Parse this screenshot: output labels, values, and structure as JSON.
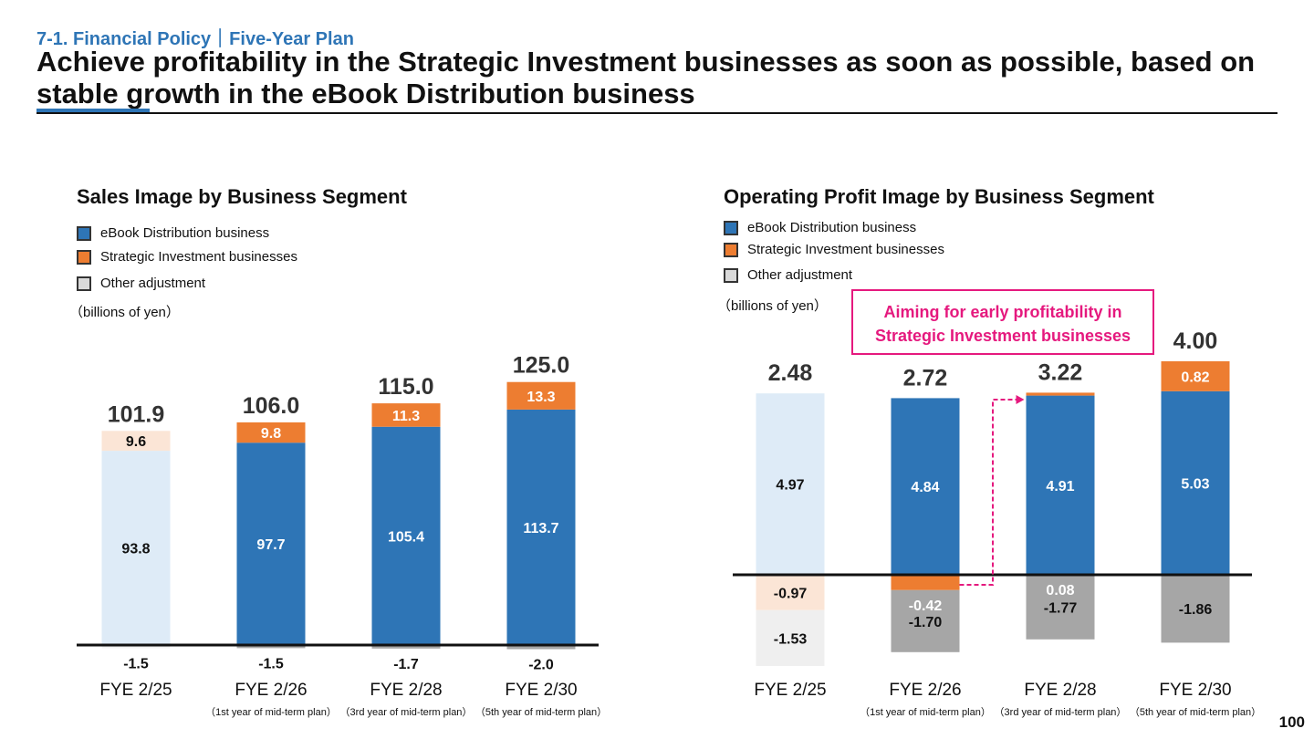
{
  "header": {
    "section": "7-1. Financial Policy｜Five-Year Plan",
    "title": "Achieve profitability in the Strategic Investment businesses as soon as possible, based on stable growth in the eBook Distribution business"
  },
  "colors": {
    "ebook": "#2e75b6",
    "strategic": "#ed7d31",
    "adjustment": "#a6a6a6",
    "actual_ebook": "#deebf7",
    "actual_strategic": "#fbe5d6",
    "actual_adjustment": "#efefef",
    "callout": "#e5197e"
  },
  "page_number": "100",
  "callout": {
    "line1": "Aiming for early profitability in",
    "line2": "Strategic Investment businesses"
  },
  "chart_data": [
    {
      "type": "bar",
      "stacked": true,
      "title": "Sales Image by Business Segment",
      "unit_label": "（billions of yen）",
      "legend": [
        "eBook Distribution business",
        "Strategic Investment businesses",
        "Other adjustment"
      ],
      "categories": [
        "FYE 2/25",
        "FYE 2/26",
        "FYE 2/28",
        "FYE 2/30"
      ],
      "subtitles": [
        "",
        "（1st year of mid-term plan）",
        "（3rd year of mid-term plan）",
        "（5th year of mid-term plan）"
      ],
      "series": [
        {
          "name": "eBook Distribution business",
          "values": [
            93.8,
            97.7,
            105.4,
            113.7
          ],
          "labels": [
            "93.8",
            "97.7",
            "105.4",
            "113.7"
          ]
        },
        {
          "name": "Strategic Investment businesses",
          "values": [
            9.6,
            9.8,
            11.3,
            13.3
          ],
          "labels": [
            "9.6",
            "9.8",
            "11.3",
            "13.3"
          ]
        },
        {
          "name": "Other adjustment",
          "values": [
            -1.5,
            -1.5,
            -1.7,
            -2.0
          ],
          "labels": [
            "-1.5",
            "-1.5",
            "-1.7",
            "-2.0"
          ]
        }
      ],
      "totals": [
        101.9,
        106.0,
        115.0,
        125.0
      ],
      "total_labels": [
        "101.9",
        "106.0",
        "115.0",
        "125.0"
      ],
      "actual_first_bar": true
    },
    {
      "type": "bar",
      "stacked": true,
      "title": "Operating Profit Image by Business Segment",
      "unit_label": "（billions of yen）",
      "legend": [
        "eBook Distribution business",
        "Strategic Investment businesses",
        "Other adjustment"
      ],
      "categories": [
        "FYE 2/25",
        "FYE 2/26",
        "FYE 2/28",
        "FYE 2/30"
      ],
      "subtitles": [
        "",
        "（1st year of mid-term plan）",
        "（3rd year of mid-term plan）",
        "（5th year of mid-term plan）"
      ],
      "series": [
        {
          "name": "eBook Distribution business",
          "values": [
            4.97,
            4.84,
            4.91,
            5.03
          ],
          "labels": [
            "4.97",
            "4.84",
            "4.91",
            "5.03"
          ]
        },
        {
          "name": "Strategic Investment businesses",
          "values": [
            -0.97,
            -0.42,
            0.08,
            0.82
          ],
          "labels": [
            "-0.97",
            "-0.42",
            "0.08",
            "0.82"
          ]
        },
        {
          "name": "Other adjustment",
          "values": [
            -1.53,
            -1.7,
            -1.77,
            -1.86
          ],
          "labels": [
            "-1.53",
            "-1.70",
            "-1.77",
            "-1.86"
          ]
        }
      ],
      "totals": [
        2.48,
        2.72,
        3.22,
        4.0
      ],
      "total_labels": [
        "2.48",
        "2.72",
        "3.22",
        "4.00"
      ],
      "actual_first_bar": true
    }
  ]
}
